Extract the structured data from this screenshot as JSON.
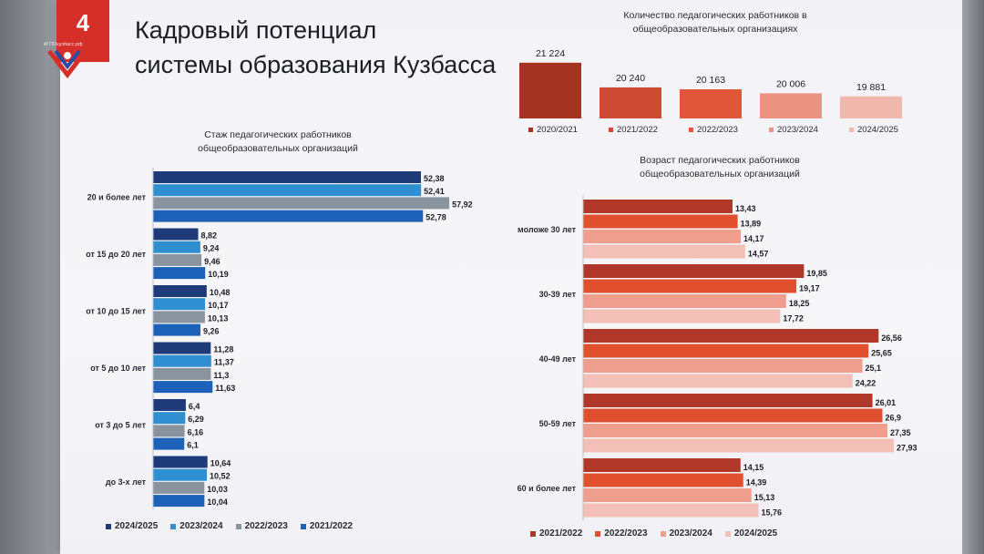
{
  "slide": {
    "number": "4",
    "title_line1": "Кадровый потенциал",
    "title_line2": "системы образования Кузбасса",
    "logo_text": "#ГПОкузбасс.рф"
  },
  "colors": {
    "blue_2024_2025": "#1f3a78",
    "blue_2023_2024": "#2f8fd0",
    "gray_2022_2023": "#8a949e",
    "blue_2021_2022": "#1d62b8",
    "red_2021_2022": "#b0382a",
    "red_2022_2023": "#e0502f",
    "red_2023_2024": "#ef9e8e",
    "red_2024_2025": "#f2c0b6",
    "count_2020_2021": "#a43322"
  },
  "chart_data": [
    {
      "id": "count",
      "type": "bar",
      "title": "Количество педагогических работников в общеобразовательных организациях",
      "categories": [
        "2020/2021",
        "2021/2022",
        "2022/2023",
        "2023/2024",
        "2024/2025"
      ],
      "values": [
        21224,
        20240,
        20163,
        20006,
        19881
      ],
      "value_labels": [
        "21 224",
        "20 240",
        "20 163",
        "20 006",
        "19 881"
      ],
      "colors": [
        "#a43322",
        "#cf4a33",
        "#e2573a",
        "#ec9484",
        "#f1b9ae"
      ],
      "ylim": [
        19000,
        21400
      ],
      "legend_position": "bottom"
    },
    {
      "id": "experience",
      "type": "bar",
      "orientation": "horizontal",
      "title": "Стаж педагогических работников общеобразовательных организаций",
      "categories": [
        "20 и более лет",
        "от 15 до 20 лет",
        "от 10 до 15 лет",
        "от 5 до 10 лет",
        "от 3 до 5 лет",
        "до 3-х лет"
      ],
      "series": [
        {
          "name": "2024/2025",
          "color": "#1f3a78",
          "values": [
            52.38,
            8.82,
            10.48,
            11.28,
            6.4,
            10.64
          ],
          "labels": [
            "52,38",
            "8,82",
            "10,48",
            "11,28",
            "6,4",
            "10,64"
          ]
        },
        {
          "name": "2023/2024",
          "color": "#2f8fd0",
          "values": [
            52.41,
            9.24,
            10.17,
            11.37,
            6.29,
            10.52
          ],
          "labels": [
            "52,41",
            "9,24",
            "10,17",
            "11,37",
            "6,29",
            "10,52"
          ]
        },
        {
          "name": "2022/2023",
          "color": "#8a949e",
          "values": [
            57.92,
            9.46,
            10.13,
            11.3,
            6.16,
            10.03
          ],
          "labels": [
            "57,92",
            "9,46",
            "10,13",
            "11,3",
            "6,16",
            "10,03"
          ]
        },
        {
          "name": "2021/2022",
          "color": "#1d62b8",
          "values": [
            52.78,
            10.19,
            9.26,
            11.63,
            6.1,
            10.04
          ],
          "labels": [
            "52,78",
            "10,19",
            "9,26",
            "11,63",
            "6,1",
            "10,04"
          ]
        }
      ],
      "xlim": [
        0,
        62
      ],
      "legend_position": "bottom"
    },
    {
      "id": "age",
      "type": "bar",
      "orientation": "horizontal",
      "title": "Возраст педагогических работников общеобразовательных организаций",
      "categories": [
        "моложе 30 лет",
        "30-39 лет",
        "40-49 лет",
        "50-59 лет",
        "60 и более лет"
      ],
      "series": [
        {
          "name": "2021/2022",
          "color": "#b0382a",
          "values": [
            13.43,
            19.85,
            26.56,
            26.01,
            14.15
          ],
          "labels": [
            "13,43",
            "19,85",
            "26,56",
            "26,01",
            "14,15"
          ]
        },
        {
          "name": "2022/2023",
          "color": "#e0502f",
          "values": [
            13.89,
            19.17,
            25.65,
            26.9,
            14.39
          ],
          "labels": [
            "13,89",
            "19,17",
            "25,65",
            "26,9",
            "14,39"
          ]
        },
        {
          "name": "2023/2024",
          "color": "#ef9e8e",
          "values": [
            14.17,
            18.25,
            25.1,
            27.35,
            15.13
          ],
          "labels": [
            "14,17",
            "18,25",
            "25,1",
            "27,35",
            "15,13"
          ]
        },
        {
          "name": "2024/2025",
          "color": "#f2c0b6",
          "values": [
            14.57,
            17.72,
            24.22,
            27.93,
            15.76
          ],
          "labels": [
            "14,57",
            "17,72",
            "24,22",
            "27,93",
            "15,76"
          ]
        }
      ],
      "xlim": [
        0,
        28.5
      ],
      "legend_position": "bottom"
    }
  ]
}
